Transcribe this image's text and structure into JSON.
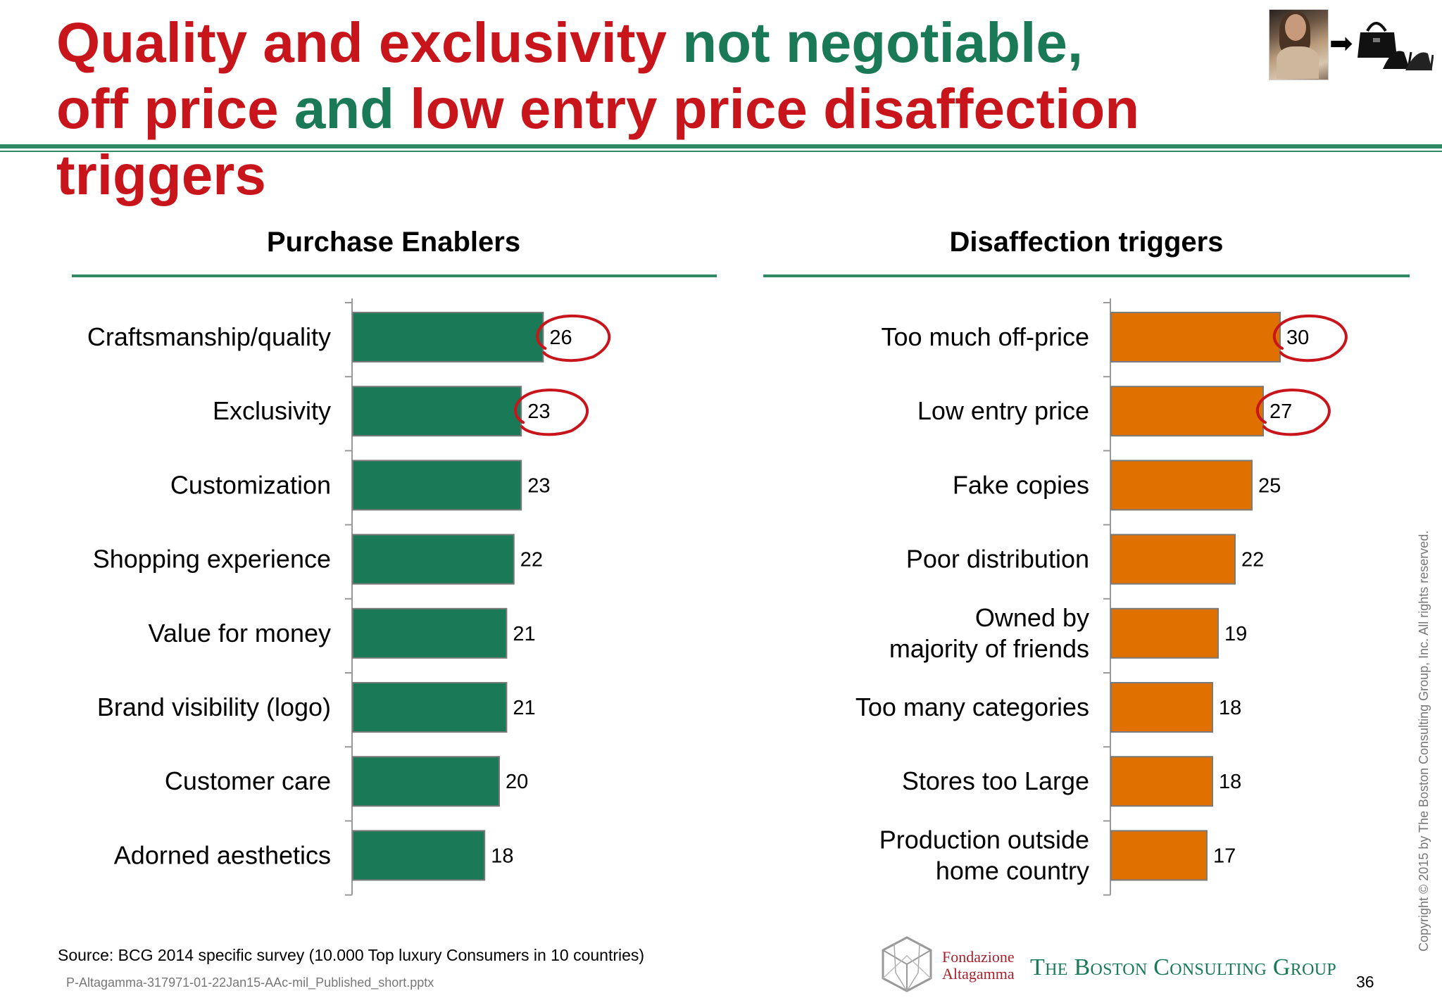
{
  "title": {
    "line1_part1": "Quality and exclusivity",
    "line1_part2": " not negotiable,",
    "line2_part1": "off price",
    "line2_part2": " and ",
    "line2_part3": "low entry price disaffection triggers"
  },
  "chart_data": [
    {
      "type": "bar",
      "orientation": "horizontal",
      "title": "Purchase Enablers",
      "categories": [
        "Craftsmanship/quality",
        "Exclusivity",
        "Customization",
        "Shopping experience",
        "Value for money",
        "Brand visibility (logo)",
        "Customer care",
        "Adorned aesthetics"
      ],
      "values": [
        26,
        23,
        23,
        22,
        21,
        21,
        20,
        18
      ],
      "highlighted": [
        0,
        1
      ],
      "color": "#1a7a57",
      "xlim": [
        0,
        60
      ]
    },
    {
      "type": "bar",
      "orientation": "horizontal",
      "title": "Disaffection triggers",
      "categories": [
        "Too much off-price",
        "Low entry price",
        "Fake copies",
        "Poor distribution",
        "Owned by\nmajority of friends",
        "Too many categories",
        "Stores too Large",
        "Production outside\nhome country"
      ],
      "values": [
        30,
        27,
        25,
        22,
        19,
        18,
        18,
        17
      ],
      "highlighted": [
        0,
        1
      ],
      "color": "#e07000",
      "xlim": [
        0,
        60
      ]
    }
  ],
  "footer": {
    "source": "Source: BCG 2014 specific survey (10.000 Top luxury Consumers in 10 countries)",
    "filename": "P-Altagamma-317971-01-22Jan15-AAc-mil_Published_short.pptx",
    "copyright": "Copyright © 2015 by The Boston Consulting Group, Inc. All rights reserved.",
    "page_number": "36",
    "fondazione_line1": "Fondazione",
    "fondazione_line2": "Altagamma",
    "bcg_name": "The Boston Consulting Group"
  },
  "icons": {
    "thumbnail": "woman-photo-icon",
    "arrow": "right-arrow-icon",
    "accessories": "handbag-shoes-icon"
  }
}
